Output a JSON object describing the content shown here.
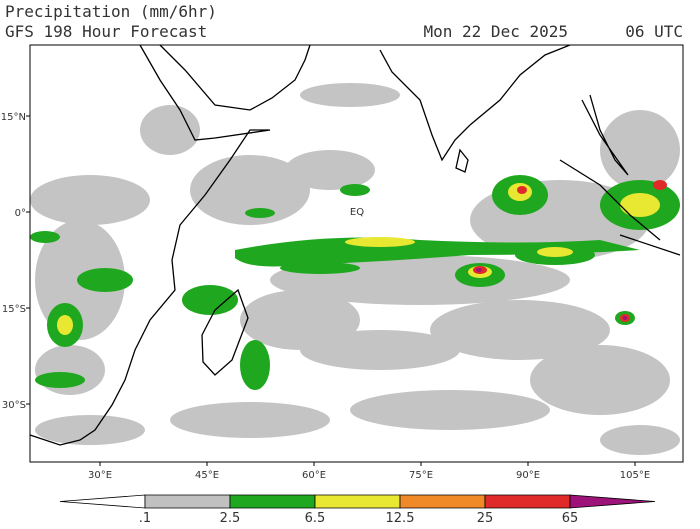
{
  "header": {
    "title": "Precipitation (mm/6hr)",
    "subtitle": "GFS 198 Hour Forecast",
    "date": "Mon 22 Dec 2025",
    "time": "06 UTC"
  },
  "map": {
    "lon_ticks": [
      {
        "value": 30,
        "label": "30°E"
      },
      {
        "value": 45,
        "label": "45°E"
      },
      {
        "value": 60,
        "label": "60°E"
      },
      {
        "value": 75,
        "label": "75°E"
      },
      {
        "value": 90,
        "label": "90°E"
      },
      {
        "value": 105,
        "label": "105°E"
      }
    ],
    "lat_ticks": [
      {
        "value": 15,
        "label": "15°N"
      },
      {
        "value": 0,
        "label": "0°"
      },
      {
        "value": -15,
        "label": "15°S"
      },
      {
        "value": -30,
        "label": "30°S"
      }
    ],
    "equator_label": "EQ"
  },
  "colorbar": {
    "levels": [
      {
        "value": 0.1,
        "label": ".1"
      },
      2.5,
      6.5,
      12.5,
      25,
      65
    ],
    "colors": [
      "#ffffff",
      "#c0c0c0",
      "#1fa81f",
      "#e8e832",
      "#f08a28",
      "#e02a2a",
      "#9e137a"
    ]
  }
}
